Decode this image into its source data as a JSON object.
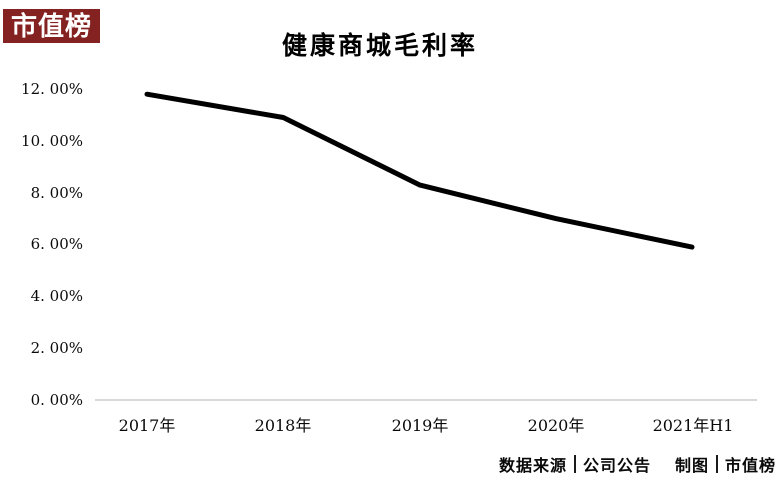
{
  "logo": {
    "text": "市值榜"
  },
  "title": "健康商城毛利率",
  "colors": {
    "logo_bg": "#842121",
    "logo_text": "#ffffff",
    "line": "#000000",
    "axis_line": "#d9d9d9",
    "text": "#000000"
  },
  "chart_data": {
    "type": "line",
    "title": "健康商城毛利率",
    "categories": [
      "2017年",
      "2018年",
      "2019年",
      "2020年",
      "2021年H1"
    ],
    "values": [
      11.8,
      10.9,
      8.3,
      7.0,
      5.9
    ],
    "unit": "%",
    "ylim": [
      0,
      12
    ],
    "y_tick_step": 2,
    "y_tick_labels": [
      "12. 00%",
      "10. 00%",
      "8. 00%",
      "6. 00%",
      "4. 00%",
      "2. 00%",
      "0. 00%"
    ],
    "grid": false,
    "legend": false,
    "line_color": "#000000",
    "line_width": 5,
    "baseline_only": true
  },
  "footer": {
    "source_label": "数据来源",
    "source_value": "公司公告",
    "credit_label": "制图",
    "credit_value": "市值榜"
  }
}
